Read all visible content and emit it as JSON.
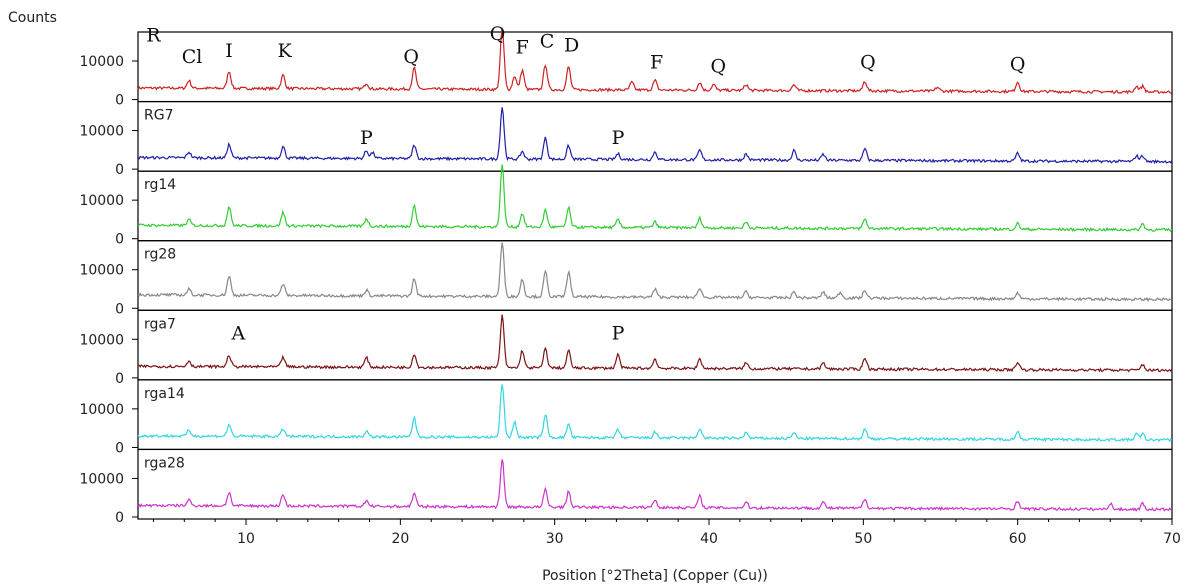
{
  "chart_data": {
    "type": "line",
    "y_axis_title": "Counts",
    "x_axis_title": "Position [°2Theta] (Copper (Cu))",
    "xlim": [
      3,
      70
    ],
    "x_ticks": [
      10,
      20,
      30,
      40,
      50,
      60,
      70
    ],
    "y_ticks": [
      0,
      10000
    ],
    "panel_ylim": [
      0,
      17000
    ],
    "series": [
      {
        "name": "R",
        "color": "#cc2222",
        "baseline": 3000,
        "peaks": [
          [
            6.3,
            2000
          ],
          [
            8.9,
            4500
          ],
          [
            12.4,
            3500
          ],
          [
            17.8,
            1500
          ],
          [
            20.9,
            5500
          ],
          [
            26.6,
            16000
          ],
          [
            27.4,
            3500
          ],
          [
            27.9,
            5000
          ],
          [
            29.4,
            6500
          ],
          [
            30.9,
            6000
          ],
          [
            35.0,
            2000
          ],
          [
            36.5,
            2500
          ],
          [
            39.4,
            2000
          ],
          [
            40.3,
            1500
          ],
          [
            42.4,
            1500
          ],
          [
            45.5,
            1500
          ],
          [
            50.1,
            2500
          ],
          [
            54.8,
            1000
          ],
          [
            60.0,
            2500
          ],
          [
            67.7,
            1500
          ],
          [
            68.1,
            1500
          ]
        ]
      },
      {
        "name": "RG7",
        "color": "#1f1fa8",
        "baseline": 3000,
        "peaks": [
          [
            6.3,
            1500
          ],
          [
            8.9,
            3500
          ],
          [
            12.4,
            3000
          ],
          [
            17.8,
            2000
          ],
          [
            18.2,
            1500
          ],
          [
            20.9,
            3500
          ],
          [
            26.6,
            13500
          ],
          [
            27.9,
            2000
          ],
          [
            29.4,
            5500
          ],
          [
            30.9,
            3500
          ],
          [
            34.1,
            1500
          ],
          [
            36.5,
            2000
          ],
          [
            39.4,
            2500
          ],
          [
            42.4,
            1500
          ],
          [
            45.5,
            2500
          ],
          [
            47.4,
            1500
          ],
          [
            50.1,
            3000
          ],
          [
            60.0,
            2000
          ],
          [
            67.7,
            1500
          ],
          [
            68.1,
            1500
          ]
        ]
      },
      {
        "name": "rg14",
        "color": "#33cc33",
        "baseline": 3500,
        "peaks": [
          [
            6.3,
            1500
          ],
          [
            8.9,
            5000
          ],
          [
            12.4,
            3500
          ],
          [
            17.8,
            2000
          ],
          [
            20.9,
            5500
          ],
          [
            26.6,
            16000
          ],
          [
            27.9,
            3500
          ],
          [
            29.4,
            4500
          ],
          [
            30.9,
            5000
          ],
          [
            34.1,
            2000
          ],
          [
            36.5,
            1500
          ],
          [
            39.4,
            2500
          ],
          [
            42.4,
            1500
          ],
          [
            50.1,
            2500
          ],
          [
            60.0,
            1500
          ],
          [
            68.1,
            1500
          ]
        ]
      },
      {
        "name": "rg28",
        "color": "#888888",
        "baseline": 3500,
        "peaks": [
          [
            6.3,
            1500
          ],
          [
            8.9,
            5000
          ],
          [
            12.4,
            3000
          ],
          [
            17.8,
            1500
          ],
          [
            20.9,
            4500
          ],
          [
            26.6,
            14000
          ],
          [
            27.9,
            4500
          ],
          [
            29.4,
            6500
          ],
          [
            30.9,
            6500
          ],
          [
            36.5,
            2000
          ],
          [
            39.4,
            2500
          ],
          [
            42.4,
            1500
          ],
          [
            45.5,
            1500
          ],
          [
            47.4,
            1500
          ],
          [
            48.5,
            1500
          ],
          [
            50.1,
            2000
          ],
          [
            60.0,
            1500
          ]
        ]
      },
      {
        "name": "rga7",
        "color": "#7a1414",
        "baseline": 3000,
        "peaks": [
          [
            6.3,
            1500
          ],
          [
            8.9,
            3000
          ],
          [
            12.4,
            2500
          ],
          [
            17.8,
            2500
          ],
          [
            20.9,
            3500
          ],
          [
            26.6,
            13500
          ],
          [
            27.9,
            4500
          ],
          [
            29.4,
            5000
          ],
          [
            30.9,
            4500
          ],
          [
            34.1,
            3500
          ],
          [
            36.5,
            2500
          ],
          [
            39.4,
            2500
          ],
          [
            42.4,
            1500
          ],
          [
            47.4,
            1500
          ],
          [
            50.1,
            3000
          ],
          [
            60.0,
            2000
          ],
          [
            68.1,
            1500
          ]
        ]
      },
      {
        "name": "rga14",
        "color": "#33d6e0",
        "baseline": 3000,
        "peaks": [
          [
            6.3,
            1500
          ],
          [
            8.9,
            3000
          ],
          [
            12.4,
            2000
          ],
          [
            17.8,
            1500
          ],
          [
            20.9,
            5000
          ],
          [
            26.6,
            14000
          ],
          [
            27.4,
            4000
          ],
          [
            29.4,
            6000
          ],
          [
            30.9,
            3500
          ],
          [
            34.1,
            2000
          ],
          [
            36.5,
            1500
          ],
          [
            39.4,
            2500
          ],
          [
            42.4,
            1500
          ],
          [
            45.5,
            1500
          ],
          [
            50.1,
            2500
          ],
          [
            60.0,
            2000
          ],
          [
            67.7,
            1500
          ],
          [
            68.1,
            1500
          ]
        ]
      },
      {
        "name": "rga28",
        "color": "#cc33cc",
        "baseline": 3000,
        "peaks": [
          [
            6.3,
            1500
          ],
          [
            8.9,
            3500
          ],
          [
            12.4,
            3000
          ],
          [
            17.8,
            1500
          ],
          [
            20.9,
            3500
          ],
          [
            26.6,
            12500
          ],
          [
            29.4,
            4500
          ],
          [
            30.9,
            4000
          ],
          [
            36.5,
            2000
          ],
          [
            39.4,
            3000
          ],
          [
            42.4,
            1500
          ],
          [
            47.4,
            1500
          ],
          [
            50.1,
            2500
          ],
          [
            60.0,
            2000
          ],
          [
            66.0,
            1500
          ],
          [
            68.1,
            1500
          ]
        ]
      }
    ],
    "annotations": [
      {
        "panel": 0,
        "text": "R",
        "x": 4.0,
        "y": 15000
      },
      {
        "panel": 0,
        "text": "Cl",
        "x": 6.5,
        "y": 9500
      },
      {
        "panel": 0,
        "text": "I",
        "x": 8.9,
        "y": 11000
      },
      {
        "panel": 0,
        "text": "K",
        "x": 12.5,
        "y": 11000
      },
      {
        "panel": 0,
        "text": "Q",
        "x": 20.7,
        "y": 9500
      },
      {
        "panel": 0,
        "text": "Q",
        "x": 26.3,
        "y": 15500
      },
      {
        "panel": 0,
        "text": "F",
        "x": 27.9,
        "y": 12000
      },
      {
        "panel": 0,
        "text": "C",
        "x": 29.5,
        "y": 13500
      },
      {
        "panel": 0,
        "text": "D",
        "x": 31.1,
        "y": 12500
      },
      {
        "panel": 0,
        "text": "F",
        "x": 36.6,
        "y": 8000
      },
      {
        "panel": 0,
        "text": "Q",
        "x": 40.6,
        "y": 7000
      },
      {
        "panel": 0,
        "text": "Q",
        "x": 50.3,
        "y": 8000
      },
      {
        "panel": 0,
        "text": "Q",
        "x": 60.0,
        "y": 7500
      },
      {
        "panel": 1,
        "text": "P",
        "x": 17.8,
        "y": 6500
      },
      {
        "panel": 1,
        "text": "P",
        "x": 34.1,
        "y": 6500
      },
      {
        "panel": 4,
        "text": "A",
        "x": 9.5,
        "y": 10000
      },
      {
        "panel": 4,
        "text": "P",
        "x": 34.1,
        "y": 10000
      }
    ]
  }
}
